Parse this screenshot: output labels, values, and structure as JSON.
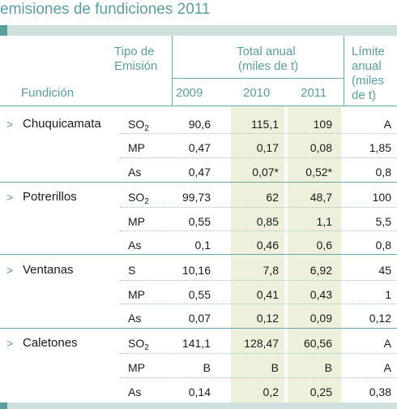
{
  "title": "emisiones de fundiciones 2011",
  "headers": {
    "tipo": [
      "Tipo de",
      "Emisión"
    ],
    "total": [
      "Total anual",
      "(miles de t)"
    ],
    "limite": [
      "Límite",
      "anual",
      "(miles",
      "de t)"
    ],
    "fundicion": "Fundición",
    "years": [
      "2009",
      "2010",
      "2011"
    ]
  },
  "groups": [
    {
      "name": "Chuquicamata",
      "rows": [
        {
          "tipo": "SO",
          "sub": "2",
          "v2009": "90,6",
          "v2010": "115,1",
          "v2011": "109",
          "limite": "A"
        },
        {
          "tipo": "MP",
          "sub": "",
          "v2009": "0,47",
          "v2010": "0,17",
          "v2011": "0,08",
          "limite": "1,85"
        },
        {
          "tipo": "As",
          "sub": "",
          "v2009": "0,47",
          "v2010": "0,07*",
          "v2011": "0,52*",
          "limite": "0,8"
        }
      ]
    },
    {
      "name": "Potrerillos",
      "rows": [
        {
          "tipo": "SO",
          "sub": "2",
          "v2009": "99,73",
          "v2010": "62",
          "v2011": "48,7",
          "limite": "100"
        },
        {
          "tipo": "MP",
          "sub": "",
          "v2009": "0,55",
          "v2010": "0,85",
          "v2011": "1,1",
          "limite": "5,5"
        },
        {
          "tipo": "As",
          "sub": "",
          "v2009": "0,1",
          "v2010": "0,46",
          "v2011": "0,6",
          "limite": "0,8"
        }
      ]
    },
    {
      "name": "Ventanas",
      "rows": [
        {
          "tipo": "S",
          "sub": "",
          "v2009": "10,16",
          "v2010": "7,8",
          "v2011": "6,92",
          "limite": "45"
        },
        {
          "tipo": "MP",
          "sub": "",
          "v2009": "0,55",
          "v2010": "0,41",
          "v2011": "0,43",
          "limite": "1"
        },
        {
          "tipo": "As",
          "sub": "",
          "v2009": "0,07",
          "v2010": "0,12",
          "v2011": "0,09",
          "limite": "0,12"
        }
      ]
    },
    {
      "name": "Caletones",
      "rows": [
        {
          "tipo": "SO",
          "sub": "2",
          "v2009": "141,1",
          "v2010": "128,47",
          "v2011": "60,56",
          "limite": "A"
        },
        {
          "tipo": "MP",
          "sub": "",
          "v2009": "B",
          "v2010": "B",
          "v2011": "B",
          "limite": "A"
        },
        {
          "tipo": "As",
          "sub": "",
          "v2009": "0,14",
          "v2010": "0,2",
          "v2011": "0,25",
          "limite": "0,38"
        }
      ]
    }
  ],
  "arrow_glyph": ">",
  "colors": {
    "accent": "#5b9ea1",
    "band": "#cfe1df",
    "highlight": "#eef0dc"
  }
}
